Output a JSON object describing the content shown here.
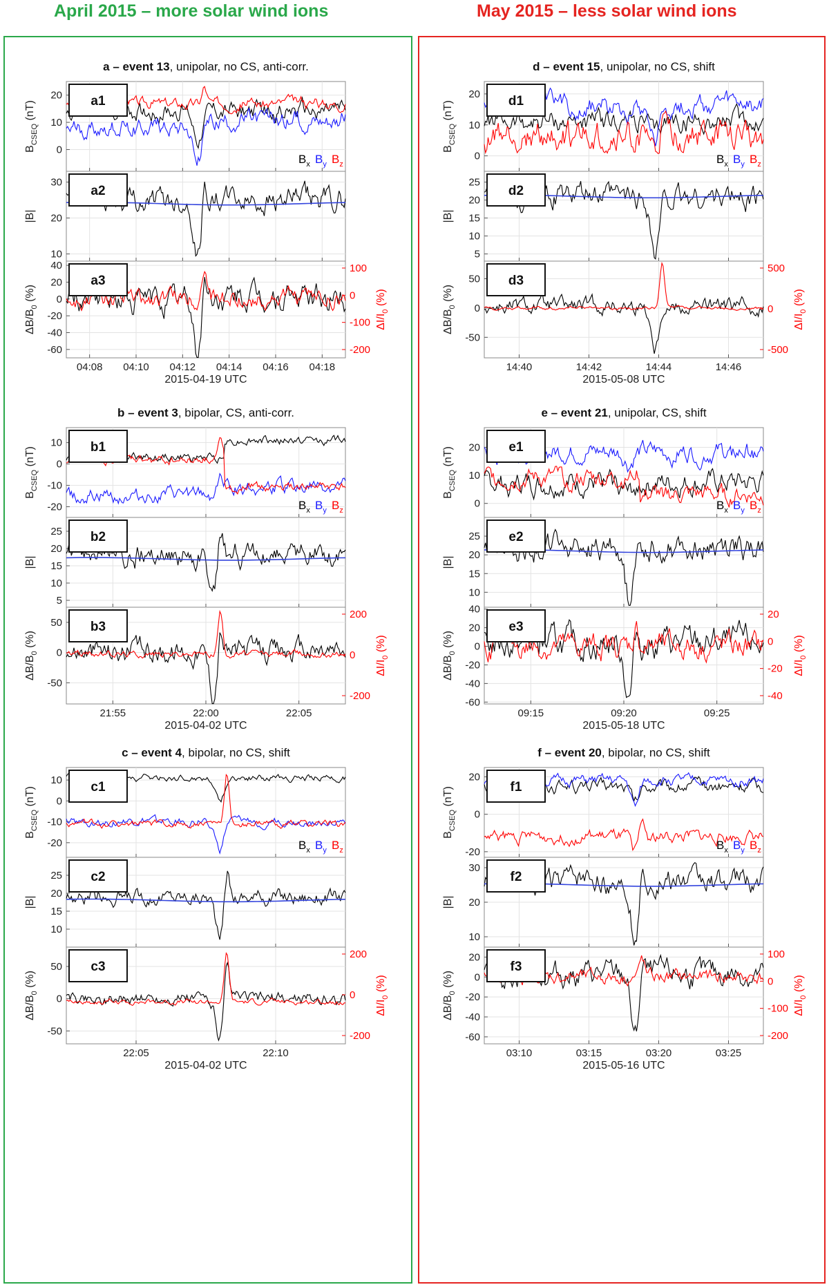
{
  "titles": {
    "left": "April 2015 – more solar wind ions",
    "right": "May 2015 – less solar wind ions"
  },
  "colors": {
    "left_frame": "#2aa84a",
    "right_frame": "#e52420",
    "bx": "#000000",
    "by": "#1a1aff",
    "bz": "#ff0000",
    "mean": "#3344dd"
  },
  "legend": {
    "bx": "B",
    "bx_sub": "x",
    "by": "B",
    "by_sub": "y",
    "bz": "B",
    "bz_sub": "z"
  },
  "ylabels": {
    "panel1": "B",
    "panel1_sub": "CSEQ",
    "panel1_unit": " (nT)",
    "panel2": "|B|",
    "panel3": "ΔB/B",
    "panel3_sub": "0",
    "panel3_unit": " (%)",
    "panel3_right": "ΔI/I",
    "panel3_right_sub": "0",
    "panel3_right_unit": " (%)"
  },
  "chart_data": [
    {
      "id": "a",
      "type": "line",
      "title_bold": "a – event 13",
      "title_rest": ", unipolar, no CS, anti-corr.",
      "xlabel": "2015-04-19 UTC",
      "xticks": [
        "04:08",
        "04:10",
        "04:12",
        "04:14",
        "04:16",
        "04:18"
      ],
      "xrange": [
        0,
        10
      ],
      "event_t": 4.7,
      "panels": [
        {
          "label": "a1",
          "ylim": [
            -8,
            25
          ],
          "yticks": [
            0,
            10,
            20
          ],
          "legend": true,
          "series": [
            {
              "name": "Bx",
              "color": "#000000",
              "base": 14,
              "amp": 2.5,
              "dip": 10,
              "spike": 0
            },
            {
              "name": "By",
              "color": "#1a1aff",
              "base": 7,
              "amp": 2.5,
              "dip": 14,
              "spike": 0,
              "trend": 5
            },
            {
              "name": "Bz",
              "color": "#ff0000",
              "base": 17,
              "amp": 1.5,
              "dip": 0,
              "spike": 6
            }
          ]
        },
        {
          "label": "a2",
          "ylim": [
            8,
            33
          ],
          "yticks": [
            10,
            20,
            30
          ],
          "series": [
            {
              "name": "|B|",
              "color": "#000000",
              "base": 25,
              "amp": 2.5,
              "dip": 15,
              "spike": 6
            },
            {
              "name": "mean",
              "color": "#3344dd",
              "base": 24,
              "amp": 0,
              "dip": 0,
              "spike": 0,
              "smooth": true
            }
          ]
        },
        {
          "label": "a3",
          "ylim": [
            -70,
            45
          ],
          "yticks": [
            -60,
            -40,
            -20,
            0,
            20,
            40
          ],
          "rticks": [
            -200,
            -100,
            0,
            100
          ],
          "series": [
            {
              "name": "dB",
              "color": "#000000",
              "base": 0,
              "amp": 12,
              "dip": 60,
              "spike": 30
            },
            {
              "name": "dI",
              "color": "#ff0000",
              "base": 0,
              "amp": 8,
              "dip": 0,
              "spike": 40
            }
          ]
        }
      ]
    },
    {
      "id": "d",
      "type": "line",
      "title_bold": "d – event 15",
      "title_rest": ", unipolar, no CS, shift",
      "xlabel": "2015-05-08 UTC",
      "xticks": [
        "14:40",
        "14:42",
        "14:44",
        "14:46"
      ],
      "xrange": [
        -0.5,
        7.5
      ],
      "event_t": 4.4,
      "panels": [
        {
          "label": "d1",
          "ylim": [
            -5,
            24
          ],
          "yticks": [
            0,
            10,
            20
          ],
          "legend": true,
          "series": [
            {
              "name": "Bx",
              "color": "#000000",
              "base": 11,
              "amp": 2.5,
              "dip": 5,
              "spike": 0
            },
            {
              "name": "By",
              "color": "#1a1aff",
              "base": 16,
              "amp": 2.5,
              "dip": 10,
              "spike": 0
            },
            {
              "name": "Bz",
              "color": "#ff0000",
              "base": 6,
              "amp": 3.5,
              "dip": 6,
              "spike": 4
            }
          ]
        },
        {
          "label": "d2",
          "ylim": [
            3,
            28
          ],
          "yticks": [
            5,
            10,
            15,
            20,
            25
          ],
          "series": [
            {
              "name": "|B|",
              "color": "#000000",
              "base": 21,
              "amp": 2.5,
              "dip": 16,
              "spike": 0
            },
            {
              "name": "mean",
              "color": "#3344dd",
              "base": 21,
              "amp": 0,
              "dip": 0,
              "spike": 0,
              "smooth": true
            }
          ]
        },
        {
          "label": "d3",
          "ylim": [
            -85,
            80
          ],
          "yticks": [
            -50,
            0,
            50
          ],
          "rticks": [
            -500,
            0,
            500
          ],
          "series": [
            {
              "name": "dB",
              "color": "#000000",
              "base": 2,
              "amp": 10,
              "dip": 70,
              "spike": 10
            },
            {
              "name": "dI",
              "color": "#ff0000",
              "base": 0,
              "amp": 2,
              "dip": 0,
              "spike": 75
            }
          ]
        }
      ]
    },
    {
      "id": "b",
      "type": "line",
      "title_bold": "b – event 3",
      "title_rest": ", bipolar, CS, anti-corr.",
      "xlabel": "2015-04-02 UTC",
      "xticks": [
        "21:55",
        "22:00",
        "22:05"
      ],
      "xrange": [
        -4,
        11
      ],
      "event_t": 3.9,
      "panels": [
        {
          "label": "b1",
          "ylim": [
            -25,
            17
          ],
          "yticks": [
            -20,
            -10,
            0,
            10
          ],
          "legend": true,
          "series": [
            {
              "name": "Bx",
              "color": "#000000",
              "base": 3,
              "amp": 1.5,
              "dip": 0,
              "spike": 0,
              "step": 8
            },
            {
              "name": "By",
              "color": "#1a1aff",
              "base": -15,
              "amp": 2.5,
              "dip": 0,
              "spike": 12,
              "step": 4
            },
            {
              "name": "Bz",
              "color": "#ff0000",
              "base": 2,
              "amp": 1.5,
              "dip": 0,
              "spike": 8,
              "step": -13
            }
          ]
        },
        {
          "label": "b2",
          "ylim": [
            3,
            29
          ],
          "yticks": [
            5,
            10,
            15,
            20,
            25
          ],
          "series": [
            {
              "name": "|B|",
              "color": "#000000",
              "base": 18,
              "amp": 2.5,
              "dip": 12,
              "spike": 9
            },
            {
              "name": "mean",
              "color": "#3344dd",
              "base": 17,
              "amp": 0,
              "dip": 0,
              "spike": 0,
              "smooth": true
            }
          ]
        },
        {
          "label": "b3",
          "ylim": [
            -85,
            75
          ],
          "yticks": [
            -50,
            0,
            50
          ],
          "rticks": [
            -200,
            0,
            200
          ],
          "series": [
            {
              "name": "dB",
              "color": "#000000",
              "base": 3,
              "amp": 14,
              "dip": 70,
              "spike": 45
            },
            {
              "name": "dI",
              "color": "#ff0000",
              "base": -2,
              "amp": 4,
              "dip": 0,
              "spike": 70
            }
          ]
        }
      ]
    },
    {
      "id": "e",
      "type": "line",
      "title_bold": "e – event 21",
      "title_rest": ", unipolar, CS, shift",
      "xlabel": "2015-05-18 UTC",
      "xticks": [
        "09:15",
        "09:20",
        "09:25"
      ],
      "xrange": [
        0,
        13.5
      ],
      "event_t": 7.0,
      "panels": [
        {
          "label": "e1",
          "ylim": [
            -5,
            27
          ],
          "yticks": [
            0,
            10,
            20
          ],
          "legend": true,
          "series": [
            {
              "name": "Bx",
              "color": "#000000",
              "base": 7,
              "amp": 3,
              "dip": 4,
              "spike": 0
            },
            {
              "name": "By",
              "color": "#1a1aff",
              "base": 18,
              "amp": 2.5,
              "dip": 4,
              "spike": 0
            },
            {
              "name": "Bz",
              "color": "#ff0000",
              "base": 9,
              "amp": 2.5,
              "dip": 0,
              "spike": 4,
              "step": -6
            }
          ]
        },
        {
          "label": "e2",
          "ylim": [
            6,
            30
          ],
          "yticks": [
            10,
            15,
            20,
            25
          ],
          "series": [
            {
              "name": "|B|",
              "color": "#000000",
              "base": 22,
              "amp": 2.5,
              "dip": 14,
              "spike": 3
            },
            {
              "name": "mean",
              "color": "#3344dd",
              "base": 21,
              "amp": 0,
              "dip": 0,
              "spike": 0,
              "smooth": true
            }
          ]
        },
        {
          "label": "e3",
          "ylim": [
            -62,
            42
          ],
          "yticks": [
            -60,
            -40,
            -20,
            0,
            20,
            40
          ],
          "rticks": [
            -40,
            -20,
            0,
            20
          ],
          "series": [
            {
              "name": "dB",
              "color": "#000000",
              "base": 3,
              "amp": 12,
              "dip": 58,
              "spike": 20
            },
            {
              "name": "dI",
              "color": "#ff0000",
              "base": 0,
              "amp": 10,
              "dip": 0,
              "spike": 20
            }
          ]
        }
      ]
    },
    {
      "id": "c",
      "type": "line",
      "title_bold": "c – event 4",
      "title_rest": ", bipolar, no CS, shift",
      "xlabel": "2015-04-02 UTC",
      "xticks": [
        "22:05",
        "22:10"
      ],
      "xrange": [
        -4,
        8
      ],
      "event_t": 2.6,
      "panels": [
        {
          "label": "c1",
          "ylim": [
            -27,
            16
          ],
          "yticks": [
            -20,
            -10,
            0,
            10
          ],
          "legend": true,
          "series": [
            {
              "name": "Bx",
              "color": "#000000",
              "base": 11,
              "amp": 1.2,
              "dip": 12,
              "spike": 0
            },
            {
              "name": "By",
              "color": "#1a1aff",
              "base": -10,
              "amp": 1.5,
              "dip": 14,
              "spike": 0
            },
            {
              "name": "Bz",
              "color": "#ff0000",
              "base": -11,
              "amp": 1.2,
              "dip": 0,
              "spike": 24
            }
          ]
        },
        {
          "label": "c2",
          "ylim": [
            5,
            30
          ],
          "yticks": [
            10,
            15,
            20,
            25
          ],
          "series": [
            {
              "name": "|B|",
              "color": "#000000",
              "base": 19,
              "amp": 1.5,
              "dip": 12,
              "spike": 9
            },
            {
              "name": "mean",
              "color": "#3344dd",
              "base": 18,
              "amp": 0,
              "dip": 0,
              "spike": 0,
              "smooth": true
            }
          ]
        },
        {
          "label": "c3",
          "ylim": [
            -70,
            80
          ],
          "yticks": [
            -50,
            0,
            50
          ],
          "rticks": [
            -200,
            0,
            200
          ],
          "series": [
            {
              "name": "dB",
              "color": "#000000",
              "base": 0,
              "amp": 7,
              "dip": 60,
              "spike": 55
            },
            {
              "name": "dI",
              "color": "#ff0000",
              "base": -5,
              "amp": 3,
              "dip": 0,
              "spike": 75
            }
          ]
        }
      ]
    },
    {
      "id": "f",
      "type": "line",
      "title_bold": "f – event 20",
      "title_rest": ", bipolar, no CS, shift",
      "xlabel": "2015-05-16 UTC",
      "xticks": [
        "03:10",
        "03:15",
        "03:20",
        "03:25"
      ],
      "xrange": [
        0,
        18.5
      ],
      "event_t": 10.0,
      "panels": [
        {
          "label": "f1",
          "ylim": [
            -23,
            25
          ],
          "yticks": [
            -20,
            0,
            20
          ],
          "legend": true,
          "series": [
            {
              "name": "Bx",
              "color": "#000000",
              "base": 15,
              "amp": 2.5,
              "dip": 8,
              "spike": 0
            },
            {
              "name": "By",
              "color": "#1a1aff",
              "base": 18,
              "amp": 2,
              "dip": 14,
              "spike": 0
            },
            {
              "name": "Bz",
              "color": "#ff0000",
              "base": -12,
              "amp": 2.5,
              "dip": 8,
              "spike": 10
            }
          ]
        },
        {
          "label": "f2",
          "ylim": [
            7,
            33
          ],
          "yticks": [
            10,
            20,
            30
          ],
          "series": [
            {
              "name": "|B|",
              "color": "#000000",
              "base": 26,
              "amp": 2.5,
              "dip": 17,
              "spike": 4
            },
            {
              "name": "mean",
              "color": "#3344dd",
              "base": 25,
              "amp": 0,
              "dip": 0,
              "spike": 0,
              "smooth": true
            }
          ]
        },
        {
          "label": "f3",
          "ylim": [
            -67,
            30
          ],
          "yticks": [
            -60,
            -40,
            -20,
            0,
            20
          ],
          "rticks": [
            -200,
            -100,
            0,
            100
          ],
          "series": [
            {
              "name": "dB",
              "color": "#000000",
              "base": 3,
              "amp": 9,
              "dip": 65,
              "spike": 18
            },
            {
              "name": "dI",
              "color": "#ff0000",
              "base": 0,
              "amp": 5,
              "dip": 0,
              "spike": 18
            }
          ]
        }
      ]
    }
  ]
}
